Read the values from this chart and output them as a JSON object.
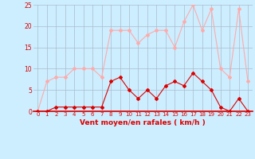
{
  "x": [
    0,
    1,
    2,
    3,
    4,
    5,
    6,
    7,
    8,
    9,
    10,
    11,
    12,
    13,
    14,
    15,
    16,
    17,
    18,
    19,
    20,
    21,
    22,
    23
  ],
  "wind_avg": [
    0,
    0,
    1,
    1,
    1,
    1,
    1,
    1,
    7,
    8,
    5,
    3,
    5,
    3,
    6,
    7,
    6,
    9,
    7,
    5,
    1,
    0,
    3,
    0
  ],
  "wind_gust": [
    0,
    7,
    8,
    8,
    10,
    10,
    10,
    8,
    19,
    19,
    19,
    16,
    18,
    19,
    19,
    15,
    21,
    25,
    19,
    24,
    10,
    8,
    24,
    7
  ],
  "xlabel": "Vent moyen/en rafales ( km/h )",
  "ylim": [
    0,
    25
  ],
  "yticks": [
    0,
    5,
    10,
    15,
    20,
    25
  ],
  "xticks": [
    0,
    1,
    2,
    3,
    4,
    5,
    6,
    7,
    8,
    9,
    10,
    11,
    12,
    13,
    14,
    15,
    16,
    17,
    18,
    19,
    20,
    21,
    22,
    23
  ],
  "color_avg": "#dd0000",
  "color_gust": "#ffaaaa",
  "bg_color": "#cceeff",
  "grid_color": "#aabbcc",
  "marker": "D",
  "marker_size": 2.0,
  "linewidth": 0.8
}
